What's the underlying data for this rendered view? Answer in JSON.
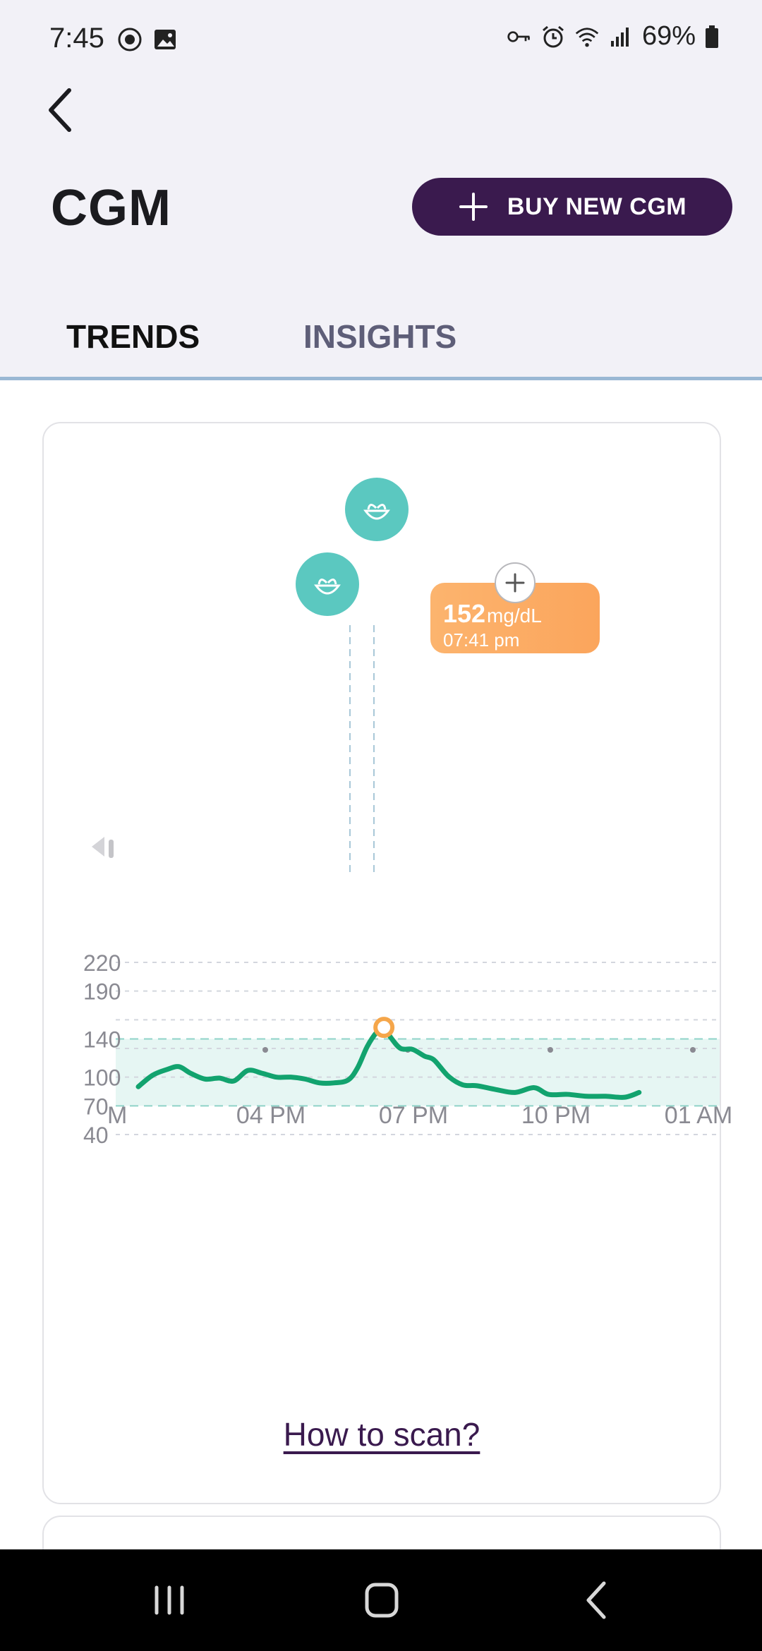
{
  "status_bar": {
    "time": "7:45",
    "battery": "69%",
    "icons_left": [
      "music-icon",
      "image-icon"
    ],
    "icons_right": [
      "key-icon",
      "alarm-icon",
      "wifi-icon",
      "signal-icon",
      "battery-icon"
    ]
  },
  "header": {
    "title": "CGM",
    "buy_button_label": "BUY NEW CGM"
  },
  "tabs": [
    {
      "label": "TRENDS",
      "active": true
    },
    {
      "label": "INSIGHTS",
      "active": false
    }
  ],
  "chart_data": {
    "type": "line",
    "xlabel": "",
    "ylabel": "",
    "y_ticks": [
      220,
      190,
      140,
      100,
      70,
      40
    ],
    "x_ticks": [
      "M",
      "04 PM",
      "07 PM",
      "10 PM",
      "01 AM"
    ],
    "ylim": [
      40,
      220
    ],
    "target_range": [
      70,
      140
    ],
    "tooltip": {
      "value": "152",
      "unit": "mg/dL",
      "time": "07:41 pm"
    },
    "meal_markers": 2,
    "series": [
      {
        "points": [
          [
            0.0,
            90
          ],
          [
            0.3,
            102
          ],
          [
            0.6,
            108
          ],
          [
            0.85,
            111
          ],
          [
            1.1,
            104
          ],
          [
            1.4,
            98
          ],
          [
            1.7,
            99
          ],
          [
            2.0,
            96
          ],
          [
            2.3,
            107
          ],
          [
            2.6,
            104
          ],
          [
            2.9,
            100
          ],
          [
            3.2,
            100
          ],
          [
            3.5,
            98
          ],
          [
            3.8,
            94
          ],
          [
            4.1,
            94
          ],
          [
            4.4,
            97
          ],
          [
            4.6,
            110
          ],
          [
            4.8,
            132
          ],
          [
            5.0,
            147
          ],
          [
            5.15,
            152
          ],
          [
            5.3,
            141
          ],
          [
            5.5,
            130
          ],
          [
            5.75,
            129
          ],
          [
            6.0,
            122
          ],
          [
            6.2,
            118
          ],
          [
            6.5,
            101
          ],
          [
            6.8,
            92
          ],
          [
            7.1,
            91
          ],
          [
            7.5,
            87
          ],
          [
            7.9,
            84
          ],
          [
            8.3,
            89
          ],
          [
            8.6,
            82
          ],
          [
            9.0,
            82
          ],
          [
            9.4,
            80
          ],
          [
            9.8,
            80
          ],
          [
            10.2,
            79
          ],
          [
            10.5,
            84
          ]
        ]
      }
    ]
  },
  "link_how_to_scan": "How to scan?",
  "nav": [
    "recent-apps-icon",
    "home-icon",
    "back-icon"
  ]
}
